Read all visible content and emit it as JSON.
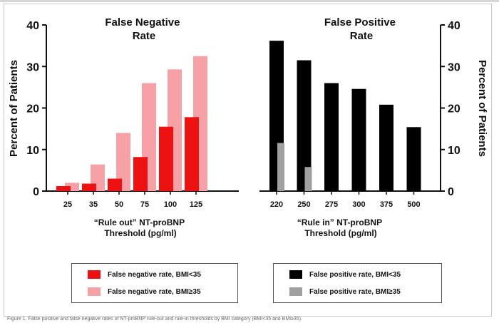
{
  "chart_data": [
    {
      "type": "bar",
      "title": "False Negative\nRate",
      "xlabel": "“Rule out” NT-proBNP\nThreshold (pg/ml)",
      "ylabel": "Percent of Patients",
      "ylim": [
        0,
        40
      ],
      "yticks": [
        "0",
        "10",
        "20",
        "30",
        "40"
      ],
      "categories": [
        "25",
        "35",
        "50",
        "75",
        "100",
        "125"
      ],
      "series": [
        {
          "name": "False negative rate, BMI<35",
          "color": "#ee1111",
          "values": [
            1.2,
            1.8,
            3.0,
            8.2,
            15.5,
            17.8
          ]
        },
        {
          "name": "False negative rate, BMI≥35",
          "color": "#f7a0a5",
          "values": [
            2.0,
            6.4,
            14.0,
            26.0,
            29.3,
            32.5
          ]
        }
      ],
      "legend_position": "bottom-left"
    },
    {
      "type": "bar",
      "title": "False Positive\nRate",
      "xlabel": "“Rule in” NT-proBNP\nThreshold (pg/ml)",
      "ylabel": "Percent of Patients",
      "ylim": [
        0,
        40
      ],
      "yticks": [
        "0",
        "10",
        "20",
        "30",
        "40"
      ],
      "categories": [
        "220",
        "250",
        "275",
        "300",
        "375",
        "500"
      ],
      "series": [
        {
          "name": "False positive rate, BMI<35",
          "color": "#000000",
          "values": [
            36.2,
            31.5,
            26.0,
            24.6,
            20.8,
            15.4
          ]
        },
        {
          "name": "False positive rate, BMI≥35",
          "color": "#a0a0a0",
          "values": [
            11.6,
            5.8,
            null,
            null,
            null,
            null
          ]
        }
      ],
      "legend_position": "bottom-right"
    }
  ],
  "caption": "Figure 1. False positive and false negative rates of NT-proBNP rule-out and rule-in thresholds by BMI category (BMI<35 and BMI≥35)."
}
